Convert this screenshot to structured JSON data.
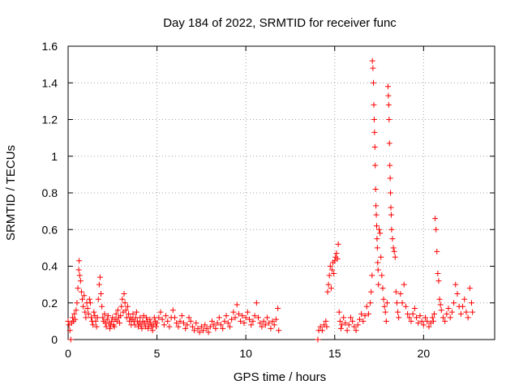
{
  "chart_data": {
    "type": "scatter",
    "title": "Day 184 of 2022, SRMTID for receiver func",
    "xlabel": "GPS time / hours",
    "ylabel": "SRMTID / TECUs",
    "xlim": [
      0,
      24
    ],
    "ylim": [
      0,
      1.6
    ],
    "xticks": [
      0,
      5,
      10,
      15,
      20
    ],
    "yticks": [
      0,
      0.2,
      0.4,
      0.6,
      0.8,
      1,
      1.2,
      1.4,
      1.6
    ],
    "ytick_labels": [
      "0",
      "0.2",
      "0.4",
      "0.6",
      "0.8",
      "1",
      "1.2",
      "1.4",
      "1.6"
    ],
    "grid": true,
    "marker": "+",
    "color": "#ff0000",
    "series": [
      {
        "name": "SRMTID",
        "points": [
          [
            0.0,
            0.1
          ],
          [
            0.05,
            0.08
          ],
          [
            0.1,
            0.05
          ],
          [
            0.15,
            0.0
          ],
          [
            0.2,
            0.09
          ],
          [
            0.25,
            0.12
          ],
          [
            0.3,
            0.1
          ],
          [
            0.35,
            0.14
          ],
          [
            0.4,
            0.11
          ],
          [
            0.45,
            0.16
          ],
          [
            0.5,
            0.2
          ],
          [
            0.55,
            0.28
          ],
          [
            0.6,
            0.38
          ],
          [
            0.62,
            0.43
          ],
          [
            0.65,
            0.35
          ],
          [
            0.7,
            0.32
          ],
          [
            0.75,
            0.26
          ],
          [
            0.8,
            0.22
          ],
          [
            0.85,
            0.18
          ],
          [
            0.9,
            0.24
          ],
          [
            0.95,
            0.15
          ],
          [
            1.0,
            0.12
          ],
          [
            1.05,
            0.2
          ],
          [
            1.1,
            0.17
          ],
          [
            1.15,
            0.14
          ],
          [
            1.2,
            0.22
          ],
          [
            1.25,
            0.2
          ],
          [
            1.3,
            0.12
          ],
          [
            1.35,
            0.1
          ],
          [
            1.4,
            0.08
          ],
          [
            1.45,
            0.15
          ],
          [
            1.5,
            0.13
          ],
          [
            1.55,
            0.1
          ],
          [
            1.6,
            0.07
          ],
          [
            1.65,
            0.12
          ],
          [
            1.7,
            0.22
          ],
          [
            1.75,
            0.3
          ],
          [
            1.8,
            0.34
          ],
          [
            1.85,
            0.25
          ],
          [
            1.9,
            0.18
          ],
          [
            1.95,
            0.12
          ],
          [
            2.0,
            0.1
          ],
          [
            2.05,
            0.14
          ],
          [
            2.1,
            0.09
          ],
          [
            2.15,
            0.07
          ],
          [
            2.2,
            0.11
          ],
          [
            2.25,
            0.13
          ],
          [
            2.3,
            0.09
          ],
          [
            2.35,
            0.06
          ],
          [
            2.4,
            0.08
          ],
          [
            2.45,
            0.1
          ],
          [
            2.5,
            0.12
          ],
          [
            2.55,
            0.08
          ],
          [
            2.6,
            0.07
          ],
          [
            2.65,
            0.11
          ],
          [
            2.7,
            0.14
          ],
          [
            2.75,
            0.1
          ],
          [
            2.8,
            0.16
          ],
          [
            2.85,
            0.12
          ],
          [
            2.9,
            0.09
          ],
          [
            2.95,
            0.13
          ],
          [
            3.0,
            0.18
          ],
          [
            3.05,
            0.22
          ],
          [
            3.1,
            0.15
          ],
          [
            3.15,
            0.25
          ],
          [
            3.2,
            0.2
          ],
          [
            3.25,
            0.16
          ],
          [
            3.3,
            0.12
          ],
          [
            3.35,
            0.18
          ],
          [
            3.4,
            0.14
          ],
          [
            3.45,
            0.1
          ],
          [
            3.5,
            0.12
          ],
          [
            3.55,
            0.08
          ],
          [
            3.6,
            0.11
          ],
          [
            3.65,
            0.14
          ],
          [
            3.7,
            0.1
          ],
          [
            3.75,
            0.08
          ],
          [
            3.8,
            0.12
          ],
          [
            3.85,
            0.15
          ],
          [
            3.9,
            0.1
          ],
          [
            3.95,
            0.07
          ],
          [
            4.0,
            0.09
          ],
          [
            4.05,
            0.12
          ],
          [
            4.1,
            0.08
          ],
          [
            4.15,
            0.06
          ],
          [
            4.2,
            0.1
          ],
          [
            4.25,
            0.13
          ],
          [
            4.3,
            0.09
          ],
          [
            4.35,
            0.07
          ],
          [
            4.4,
            0.12
          ],
          [
            4.45,
            0.1
          ],
          [
            4.5,
            0.06
          ],
          [
            4.55,
            0.08
          ],
          [
            4.6,
            0.11
          ],
          [
            4.65,
            0.09
          ],
          [
            4.7,
            0.07
          ],
          [
            4.75,
            0.05
          ],
          [
            4.8,
            0.08
          ],
          [
            4.85,
            0.12
          ],
          [
            4.9,
            0.1
          ],
          [
            4.95,
            0.07
          ],
          [
            5.0,
            0.09
          ],
          [
            5.1,
            0.12
          ],
          [
            5.2,
            0.15
          ],
          [
            5.3,
            0.11
          ],
          [
            5.4,
            0.08
          ],
          [
            5.5,
            0.13
          ],
          [
            5.6,
            0.1
          ],
          [
            5.7,
            0.07
          ],
          [
            5.8,
            0.12
          ],
          [
            5.9,
            0.16
          ],
          [
            6.0,
            0.12
          ],
          [
            6.1,
            0.09
          ],
          [
            6.2,
            0.07
          ],
          [
            6.3,
            0.1
          ],
          [
            6.4,
            0.13
          ],
          [
            6.5,
            0.09
          ],
          [
            6.6,
            0.06
          ],
          [
            6.7,
            0.08
          ],
          [
            6.8,
            0.12
          ],
          [
            6.9,
            0.1
          ],
          [
            7.0,
            0.07
          ],
          [
            7.1,
            0.05
          ],
          [
            7.2,
            0.09
          ],
          [
            7.3,
            0.06
          ],
          [
            7.4,
            0.04
          ],
          [
            7.5,
            0.07
          ],
          [
            7.6,
            0.05
          ],
          [
            7.7,
            0.08
          ],
          [
            7.8,
            0.06
          ],
          [
            7.9,
            0.04
          ],
          [
            8.0,
            0.07
          ],
          [
            8.1,
            0.1
          ],
          [
            8.2,
            0.08
          ],
          [
            8.3,
            0.06
          ],
          [
            8.4,
            0.09
          ],
          [
            8.5,
            0.12
          ],
          [
            8.6,
            0.08
          ],
          [
            8.7,
            0.06
          ],
          [
            8.8,
            0.1
          ],
          [
            8.9,
            0.13
          ],
          [
            9.0,
            0.09
          ],
          [
            9.1,
            0.07
          ],
          [
            9.2,
            0.11
          ],
          [
            9.3,
            0.15
          ],
          [
            9.4,
            0.12
          ],
          [
            9.5,
            0.19
          ],
          [
            9.6,
            0.14
          ],
          [
            9.7,
            0.1
          ],
          [
            9.8,
            0.13
          ],
          [
            9.9,
            0.09
          ],
          [
            10.0,
            0.12
          ],
          [
            10.1,
            0.15
          ],
          [
            10.2,
            0.11
          ],
          [
            10.3,
            0.08
          ],
          [
            10.4,
            0.1
          ],
          [
            10.5,
            0.13
          ],
          [
            10.6,
            0.2
          ],
          [
            10.7,
            0.12
          ],
          [
            10.8,
            0.09
          ],
          [
            10.9,
            0.07
          ],
          [
            11.0,
            0.1
          ],
          [
            11.1,
            0.08
          ],
          [
            11.2,
            0.12
          ],
          [
            11.3,
            0.09
          ],
          [
            11.4,
            0.06
          ],
          [
            11.5,
            0.1
          ],
          [
            11.6,
            0.08
          ],
          [
            11.7,
            0.11
          ],
          [
            11.8,
            0.17
          ],
          [
            11.85,
            0.05
          ],
          [
            14.05,
            0.0
          ],
          [
            14.1,
            0.05
          ],
          [
            14.2,
            0.07
          ],
          [
            14.3,
            0.05
          ],
          [
            14.4,
            0.08
          ],
          [
            14.5,
            0.1
          ],
          [
            14.55,
            0.07
          ],
          [
            14.6,
            0.26
          ],
          [
            14.65,
            0.3
          ],
          [
            14.7,
            0.35
          ],
          [
            14.75,
            0.4
          ],
          [
            14.8,
            0.28
          ],
          [
            14.85,
            0.38
          ],
          [
            14.9,
            0.42
          ],
          [
            14.95,
            0.36
          ],
          [
            15.0,
            0.43
          ],
          [
            15.05,
            0.45
          ],
          [
            15.1,
            0.47
          ],
          [
            15.15,
            0.44
          ],
          [
            15.2,
            0.52
          ],
          [
            15.25,
            0.15
          ],
          [
            15.3,
            0.1
          ],
          [
            15.35,
            0.06
          ],
          [
            15.4,
            0.08
          ],
          [
            15.5,
            0.12
          ],
          [
            15.6,
            0.09
          ],
          [
            15.7,
            0.05
          ],
          [
            15.8,
            0.08
          ],
          [
            15.9,
            0.12
          ],
          [
            16.0,
            0.1
          ],
          [
            16.1,
            0.07
          ],
          [
            16.2,
            0.05
          ],
          [
            16.3,
            0.08
          ],
          [
            16.4,
            0.11
          ],
          [
            16.5,
            0.14
          ],
          [
            16.6,
            0.1
          ],
          [
            16.7,
            0.13
          ],
          [
            16.8,
            0.18
          ],
          [
            16.9,
            0.14
          ],
          [
            17.0,
            0.2
          ],
          [
            17.05,
            0.26
          ],
          [
            17.1,
            0.35
          ],
          [
            17.12,
            1.52
          ],
          [
            17.15,
            1.48
          ],
          [
            17.18,
            1.4
          ],
          [
            17.2,
            1.28
          ],
          [
            17.22,
            1.2
          ],
          [
            17.24,
            1.13
          ],
          [
            17.26,
            1.05
          ],
          [
            17.28,
            0.95
          ],
          [
            17.3,
            0.82
          ],
          [
            17.32,
            0.73
          ],
          [
            17.34,
            0.68
          ],
          [
            17.36,
            0.62
          ],
          [
            17.38,
            0.55
          ],
          [
            17.4,
            0.5
          ],
          [
            17.42,
            0.42
          ],
          [
            17.44,
            0.38
          ],
          [
            17.46,
            0.3
          ],
          [
            17.5,
            0.6
          ],
          [
            17.55,
            0.58
          ],
          [
            17.6,
            0.45
          ],
          [
            17.65,
            0.35
          ],
          [
            17.7,
            0.28
          ],
          [
            17.75,
            0.22
          ],
          [
            17.8,
            0.18
          ],
          [
            17.85,
            0.15
          ],
          [
            17.9,
            0.1
          ],
          [
            17.95,
            0.2
          ],
          [
            18.0,
            1.38
          ],
          [
            18.02,
            1.33
          ],
          [
            18.04,
            1.28
          ],
          [
            18.06,
            1.2
          ],
          [
            18.08,
            1.07
          ],
          [
            18.1,
            0.95
          ],
          [
            18.12,
            0.88
          ],
          [
            18.14,
            0.8
          ],
          [
            18.16,
            0.72
          ],
          [
            18.18,
            0.68
          ],
          [
            18.2,
            0.6
          ],
          [
            18.25,
            0.55
          ],
          [
            18.3,
            0.5
          ],
          [
            18.35,
            0.48
          ],
          [
            18.4,
            0.45
          ],
          [
            18.45,
            0.26
          ],
          [
            18.5,
            0.2
          ],
          [
            18.55,
            0.15
          ],
          [
            18.6,
            0.12
          ],
          [
            18.7,
            0.25
          ],
          [
            18.8,
            0.2
          ],
          [
            18.9,
            0.3
          ],
          [
            19.0,
            0.18
          ],
          [
            19.1,
            0.14
          ],
          [
            19.2,
            0.12
          ],
          [
            19.3,
            0.1
          ],
          [
            19.4,
            0.14
          ],
          [
            19.5,
            0.17
          ],
          [
            19.6,
            0.12
          ],
          [
            19.7,
            0.09
          ],
          [
            19.8,
            0.13
          ],
          [
            19.9,
            0.1
          ],
          [
            20.0,
            0.08
          ],
          [
            20.1,
            0.12
          ],
          [
            20.2,
            0.1
          ],
          [
            20.3,
            0.07
          ],
          [
            20.4,
            0.09
          ],
          [
            20.5,
            0.12
          ],
          [
            20.55,
            0.1
          ],
          [
            20.6,
            0.14
          ],
          [
            20.65,
            0.66
          ],
          [
            20.7,
            0.6
          ],
          [
            20.75,
            0.48
          ],
          [
            20.8,
            0.36
          ],
          [
            20.85,
            0.32
          ],
          [
            20.9,
            0.22
          ],
          [
            20.95,
            0.19
          ],
          [
            21.0,
            0.16
          ],
          [
            21.1,
            0.12
          ],
          [
            21.2,
            0.1
          ],
          [
            21.3,
            0.14
          ],
          [
            21.4,
            0.17
          ],
          [
            21.5,
            0.12
          ],
          [
            21.6,
            0.15
          ],
          [
            21.7,
            0.2
          ],
          [
            21.8,
            0.3
          ],
          [
            21.9,
            0.25
          ],
          [
            22.0,
            0.18
          ],
          [
            22.1,
            0.14
          ],
          [
            22.2,
            0.18
          ],
          [
            22.3,
            0.22
          ],
          [
            22.4,
            0.15
          ],
          [
            22.5,
            0.12
          ],
          [
            22.6,
            0.28
          ],
          [
            22.7,
            0.2
          ],
          [
            22.75,
            0.15
          ]
        ]
      }
    ]
  }
}
